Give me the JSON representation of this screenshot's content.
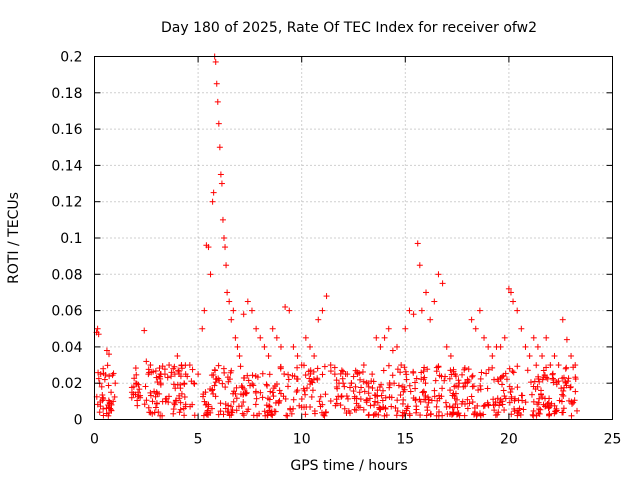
{
  "chart_data": {
    "type": "scatter",
    "title": "Day 180 of 2025, Rate Of TEC Index for receiver ofw2",
    "xlabel": "GPS time / hours",
    "ylabel": "ROTI / TECUs",
    "xlim": [
      0,
      25
    ],
    "ylim": [
      0,
      0.2
    ],
    "xticks": [
      0,
      5,
      10,
      15,
      20,
      25
    ],
    "yticks": [
      0,
      0.02,
      0.04,
      0.06,
      0.08,
      0.1,
      0.12,
      0.14,
      0.16,
      0.18,
      0.2
    ],
    "grid": true,
    "marker": "+",
    "color": "#ff0000",
    "series": [
      {
        "name": "ROTI",
        "x": [
          0.1,
          0.15,
          0.2,
          0.25,
          0.3,
          0.35,
          0.4,
          0.5,
          0.6,
          0.7,
          0.8,
          0.9,
          1.0,
          1.8,
          1.9,
          2.0,
          2.1,
          2.2,
          2.4,
          2.5,
          2.6,
          2.7,
          2.8,
          3.0,
          3.2,
          3.4,
          3.6,
          3.8,
          4.0,
          4.2,
          4.4,
          4.6,
          4.8,
          5.0,
          5.2,
          5.3,
          5.4,
          5.5,
          5.6,
          5.7,
          5.75,
          5.8,
          5.85,
          5.9,
          5.95,
          6.0,
          6.05,
          6.1,
          6.15,
          6.2,
          6.25,
          6.3,
          6.35,
          6.4,
          6.5,
          6.6,
          6.7,
          6.8,
          6.9,
          7.0,
          7.2,
          7.4,
          7.6,
          7.8,
          8.0,
          8.2,
          8.4,
          8.6,
          8.8,
          9.0,
          9.2,
          9.4,
          9.6,
          9.8,
          10.0,
          10.2,
          10.4,
          10.6,
          10.8,
          11.0,
          11.2,
          11.4,
          11.6,
          11.8,
          12.0,
          12.2,
          12.4,
          12.6,
          12.8,
          13.0,
          13.2,
          13.4,
          13.6,
          13.8,
          14.0,
          14.2,
          14.4,
          14.6,
          14.8,
          15.0,
          15.2,
          15.4,
          15.6,
          15.7,
          15.8,
          16.0,
          16.2,
          16.4,
          16.6,
          16.8,
          17.0,
          17.2,
          17.4,
          17.6,
          17.8,
          18.0,
          18.2,
          18.4,
          18.6,
          18.8,
          19.0,
          19.2,
          19.4,
          19.6,
          19.8,
          20.0,
          20.1,
          20.2,
          20.4,
          20.6,
          20.8,
          21.0,
          21.2,
          21.4,
          21.6,
          21.8,
          22.0,
          22.2,
          22.4,
          22.6,
          22.8,
          23.0,
          23.2
        ],
        "y": [
          0.048,
          0.05,
          0.047,
          0.02,
          0.025,
          0.018,
          0.012,
          0.022,
          0.038,
          0.036,
          0.015,
          0.01,
          0.02,
          0.012,
          0.018,
          0.02,
          0.015,
          0.012,
          0.049,
          0.032,
          0.025,
          0.03,
          0.01,
          0.015,
          0.02,
          0.025,
          0.03,
          0.028,
          0.035,
          0.03,
          0.025,
          0.03,
          0.02,
          0.025,
          0.05,
          0.06,
          0.096,
          0.095,
          0.08,
          0.12,
          0.125,
          0.2,
          0.197,
          0.185,
          0.175,
          0.163,
          0.15,
          0.135,
          0.13,
          0.11,
          0.1,
          0.095,
          0.085,
          0.07,
          0.065,
          0.055,
          0.06,
          0.045,
          0.04,
          0.035,
          0.058,
          0.065,
          0.06,
          0.05,
          0.045,
          0.04,
          0.035,
          0.05,
          0.045,
          0.04,
          0.062,
          0.06,
          0.04,
          0.035,
          0.03,
          0.045,
          0.04,
          0.035,
          0.055,
          0.06,
          0.068,
          0.03,
          0.025,
          0.02,
          0.02,
          0.025,
          0.02,
          0.018,
          0.015,
          0.03,
          0.02,
          0.025,
          0.045,
          0.04,
          0.045,
          0.05,
          0.038,
          0.04,
          0.03,
          0.05,
          0.06,
          0.058,
          0.097,
          0.085,
          0.06,
          0.07,
          0.055,
          0.065,
          0.08,
          0.075,
          0.04,
          0.035,
          0.025,
          0.02,
          0.018,
          0.022,
          0.055,
          0.05,
          0.06,
          0.045,
          0.04,
          0.035,
          0.04,
          0.04,
          0.045,
          0.072,
          0.07,
          0.065,
          0.06,
          0.05,
          0.04,
          0.035,
          0.045,
          0.04,
          0.035,
          0.045,
          0.03,
          0.035,
          0.03,
          0.055,
          0.044,
          0.035,
          0.03
        ]
      }
    ],
    "baseline_band": {
      "description": "dense noise floor of ROTI values",
      "x_ranges": [
        [
          0,
          1.0
        ],
        [
          1.8,
          2.2
        ],
        [
          2.4,
          4.9
        ],
        [
          5.2,
          23.3
        ]
      ],
      "y_min": 0.002,
      "y_max": 0.03
    }
  }
}
